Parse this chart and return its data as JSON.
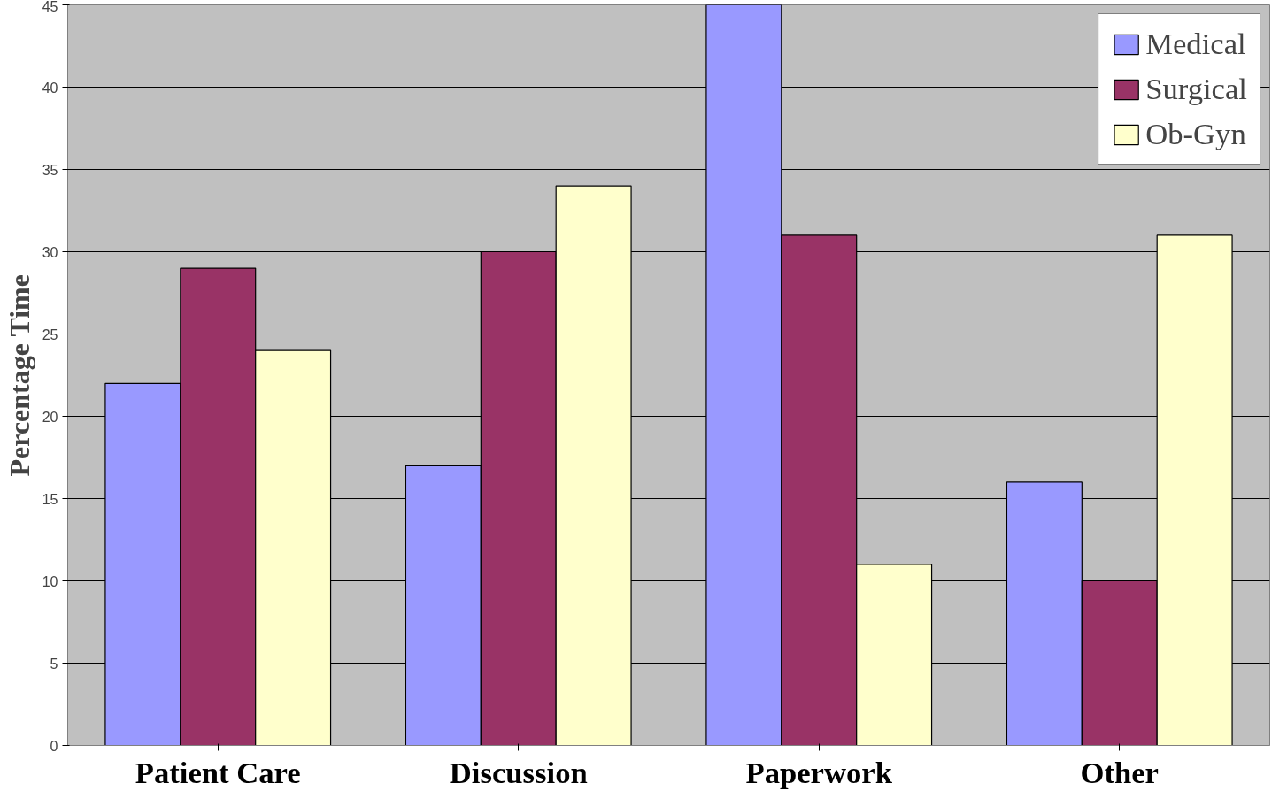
{
  "chart_data": {
    "type": "bar",
    "ylabel": "Percentage Time",
    "categories": [
      "Patient Care",
      "Discussion",
      "Paperwork",
      "Other"
    ],
    "series": [
      {
        "name": "Medical",
        "color": "#9999ff",
        "values": [
          22,
          17,
          45,
          16
        ]
      },
      {
        "name": "Surgical",
        "color": "#993366",
        "values": [
          29,
          30,
          31,
          10
        ]
      },
      {
        "name": "Ob-Gyn",
        "color": "#ffffcc",
        "values": [
          24,
          34,
          11,
          31
        ]
      }
    ],
    "ylim": [
      0,
      45
    ],
    "yticks": [
      0,
      5,
      10,
      15,
      20,
      25,
      30,
      35,
      40,
      45
    ],
    "grid": "y",
    "legend": "top right"
  }
}
